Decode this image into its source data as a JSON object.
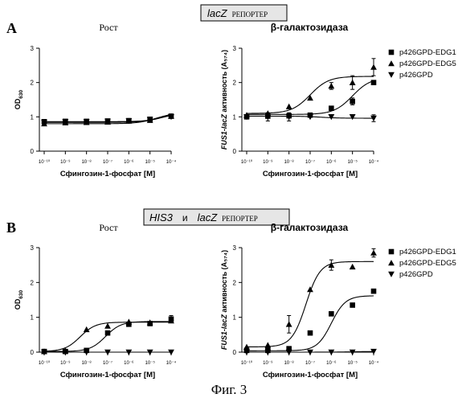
{
  "panels": [
    {
      "label": "A",
      "box": {
        "gene": "lacZ",
        "join": "",
        "gene2": "",
        "suffix": "РЕПОРТЕР"
      }
    },
    {
      "label": "B",
      "box": {
        "gene": "HIS3",
        "join": "и",
        "gene2": "lacZ",
        "suffix": "РЕПОРТЕР"
      }
    }
  ],
  "figure_caption": "Фиг. 3",
  "colors": {
    "ink": "#000000",
    "box_fill": "#e6e6e6"
  },
  "chart_data": [
    {
      "id": "A-growth",
      "type": "scatter",
      "fit": "sigmoid",
      "log_x": true,
      "title": "Рост",
      "xlabel": "Сфингозин-1-фосфат [M]",
      "ylabel": "OD630",
      "ylabel_main": "OD",
      "ylabel_sub": "630",
      "ylabel_rest": "",
      "ylim": [
        0,
        3
      ],
      "yticks": [
        "0",
        "1",
        "2",
        "3"
      ],
      "xticks": [
        "10⁻¹⁰",
        "10⁻⁹",
        "10⁻⁸",
        "10⁻⁷",
        "10⁻⁶",
        "10⁻⁵",
        "10⁻⁴"
      ],
      "x": [
        -10,
        -9,
        -8,
        -7,
        -6,
        -5,
        -4
      ],
      "series": [
        {
          "marker": "square",
          "y": [
            0.86,
            0.87,
            0.87,
            0.88,
            0.89,
            0.93,
            1.02
          ],
          "fit": {
            "bottom": 0.86,
            "top": 1.15,
            "logec50": -4.3,
            "hill": 1
          }
        },
        {
          "marker": "triangle-up",
          "y": [
            0.8,
            0.83,
            0.84,
            0.85,
            0.88,
            0.9,
            1.02
          ],
          "fit": {
            "bottom": 0.8,
            "top": 1.12,
            "logec50": -4.7,
            "hill": 1
          }
        },
        {
          "marker": "triangle-down",
          "y": [
            0.84,
            0.86,
            0.86,
            0.87,
            0.88,
            0.92,
            1.0
          ],
          "fit": {
            "bottom": 0.84,
            "top": 1.1,
            "logec50": -4.5,
            "hill": 1
          }
        }
      ]
    },
    {
      "id": "A-galactosidase",
      "type": "scatter",
      "fit": "sigmoid",
      "log_x": true,
      "title": "β-галактозидаза",
      "xlabel": "Сфингозин-1-фосфат [M]",
      "ylabel": "FUS1-lacZ активность (A574)",
      "ylabel_main": "FUS1-lacZ",
      "ylabel_sub": "",
      "ylabel_rest": " активность (A₅₇₄)",
      "ylim": [
        0,
        3
      ],
      "yticks": [
        "0",
        "1",
        "2",
        "3"
      ],
      "xticks": [
        "10⁻¹⁰",
        "10⁻⁹",
        "10⁻⁸",
        "10⁻⁷",
        "10⁻⁶",
        "10⁻⁵",
        "10⁻⁴"
      ],
      "legend": [
        "p426GPD-EDG1",
        "p426GPD-EDG5",
        "p426GPD"
      ],
      "series": [
        {
          "name": "p426GPD-EDG1",
          "marker": "square",
          "x": [
            -10,
            -9,
            -8,
            -7,
            -6,
            -5,
            -4
          ],
          "y": [
            1.0,
            1.02,
            1.03,
            1.05,
            1.25,
            1.45,
            2.0
          ],
          "err": [
            0,
            0,
            0,
            0,
            0,
            0.1,
            0
          ],
          "fit": {
            "bottom": 1.07,
            "top": 2.15,
            "logec50": -5.0,
            "hill": 1
          }
        },
        {
          "name": "p426GPD-EDG5",
          "marker": "triangle-up",
          "x": [
            -10,
            -9,
            -8,
            -7,
            -6,
            -5,
            -4
          ],
          "y": [
            1.05,
            1.1,
            1.3,
            1.55,
            1.9,
            2.0,
            2.45
          ],
          "err": [
            0,
            0,
            0,
            0,
            0.1,
            0.2,
            0.25
          ],
          "fit": {
            "bottom": 1.1,
            "top": 2.18,
            "logec50": -7.0,
            "hill": 1
          }
        },
        {
          "name": "p426GPD",
          "marker": "triangle-down",
          "x": [
            -10,
            -9,
            -8,
            -7,
            -6,
            -5,
            -4
          ],
          "y": [
            1.0,
            1.0,
            1.0,
            1.0,
            1.0,
            1.0,
            0.96
          ],
          "err": [
            0,
            0.12,
            0.12,
            0,
            0,
            0,
            0.1
          ],
          "fit": {
            "bottom": 1.02,
            "top": 0.96,
            "logec50": -6.5,
            "hill": 1
          }
        }
      ]
    },
    {
      "id": "B-growth",
      "type": "scatter",
      "fit": "sigmoid",
      "log_x": true,
      "title": "Рост",
      "xlabel": "Сфингозин-1-фосфат [M]",
      "ylabel": "OD630",
      "ylabel_main": "OD",
      "ylabel_sub": "630",
      "ylabel_rest": "",
      "ylim": [
        0,
        3
      ],
      "yticks": [
        "0",
        "1",
        "2",
        "3"
      ],
      "xticks": [
        "10⁻¹⁰",
        "10⁻⁹",
        "10⁻⁸",
        "10⁻⁷",
        "10⁻⁶",
        "10⁻⁵",
        "10⁻⁴"
      ],
      "series": [
        {
          "marker": "square",
          "x": [
            -10,
            -9,
            -8,
            -7,
            -6,
            -5,
            -4
          ],
          "y": [
            0.02,
            0.02,
            0.05,
            0.55,
            0.8,
            0.82,
            0.95
          ],
          "err": [
            0,
            0,
            0,
            0,
            0,
            0,
            0.1
          ],
          "fit": {
            "bottom": 0.02,
            "top": 0.88,
            "logec50": -7.1,
            "hill": 1.2
          }
        },
        {
          "marker": "triangle-up",
          "x": [
            -10,
            -9,
            -8,
            -7,
            -6,
            -5,
            -4
          ],
          "y": [
            0.02,
            0.04,
            0.65,
            0.75,
            0.87,
            0.85,
            0.9
          ],
          "err": [
            0,
            0,
            0,
            0,
            0,
            0,
            0
          ],
          "fit": {
            "bottom": 0.02,
            "top": 0.86,
            "logec50": -8.3,
            "hill": 1.2
          }
        },
        {
          "marker": "triangle-down",
          "x": [
            -10,
            -9,
            -8,
            -7,
            -6,
            -5,
            -4
          ],
          "y": [
            0.0,
            0.0,
            0.0,
            0.0,
            0.0,
            0.0,
            0.0
          ],
          "err": [
            0,
            0,
            0,
            0,
            0,
            0,
            0
          ],
          "fit": {
            "bottom": 0.0,
            "top": 0.0,
            "logec50": -7,
            "hill": 1
          }
        }
      ]
    },
    {
      "id": "B-galactosidase",
      "type": "scatter",
      "fit": "sigmoid",
      "log_x": true,
      "title": "β-галактозидаза",
      "xlabel": "Сфингозин-1-фосфат [M]",
      "ylabel": "FUS1-lacZ активность (A574)",
      "ylabel_main": "FUS1-lacZ",
      "ylabel_sub": "",
      "ylabel_rest": " активность (A₅₇₄)",
      "ylim": [
        0,
        3
      ],
      "yticks": [
        "0",
        "1",
        "2",
        "3"
      ],
      "xticks": [
        "10⁻¹⁰",
        "10⁻⁹",
        "10⁻⁸",
        "10⁻⁷",
        "10⁻⁶",
        "10⁻⁵",
        "10⁻⁴"
      ],
      "legend": [
        "p426GPD-EDG1",
        "p426GPD-EDG5",
        "p426GPD"
      ],
      "series": [
        {
          "name": "p426GPD-EDG1",
          "marker": "square",
          "x": [
            -10,
            -9,
            -8,
            -7,
            -6,
            -5,
            -4
          ],
          "y": [
            0.05,
            0.05,
            0.1,
            0.55,
            1.1,
            1.35,
            1.75
          ],
          "err": [
            0,
            0,
            0,
            0,
            0,
            0,
            0
          ],
          "fit": {
            "bottom": 0.04,
            "top": 1.62,
            "logec50": -6.0,
            "hill": 1.3
          }
        },
        {
          "name": "p426GPD-EDG5",
          "marker": "triangle-up",
          "x": [
            -10,
            -9,
            -8,
            -7,
            -6,
            -5,
            -4
          ],
          "y": [
            0.15,
            0.2,
            0.8,
            1.8,
            2.5,
            2.45,
            2.85
          ],
          "err": [
            0,
            0,
            0.25,
            0,
            0.15,
            0,
            0.12
          ],
          "fit": {
            "bottom": 0.15,
            "top": 2.6,
            "logec50": -7.2,
            "hill": 1.3
          }
        },
        {
          "name": "p426GPD",
          "marker": "triangle-down",
          "x": [
            -10,
            -9,
            -8,
            -7,
            -6,
            -5,
            -4
          ],
          "y": [
            0.0,
            0.0,
            0.0,
            0.0,
            0.0,
            0.0,
            0.02
          ],
          "err": [
            0,
            0,
            0,
            0,
            0,
            0,
            0
          ],
          "fit": {
            "bottom": 0.0,
            "top": 0.02,
            "logec50": -5,
            "hill": 1
          }
        }
      ]
    }
  ]
}
